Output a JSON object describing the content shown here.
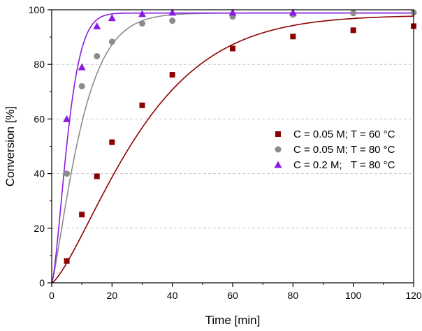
{
  "chart_data": {
    "type": "scatter",
    "title": "",
    "xlabel": "Time [min]",
    "ylabel": "Conversion [%]",
    "xlim": [
      0,
      120
    ],
    "ylim": [
      0,
      100
    ],
    "xticks": [
      0,
      20,
      40,
      60,
      80,
      100,
      120
    ],
    "yticks": [
      0,
      20,
      40,
      60,
      80,
      100
    ],
    "grid": "horizontal dashed",
    "legend_position": "center-right",
    "series": [
      {
        "name": "C = 0.05 M; T = 60 °C",
        "marker": "square",
        "color": "#8b0000",
        "x": [
          5,
          10,
          15,
          20,
          30,
          40,
          60,
          80,
          100,
          120
        ],
        "y": [
          8,
          25,
          39,
          51.5,
          65,
          76.2,
          85.8,
          90.2,
          92.5,
          94
        ],
        "fit": {
          "kind": "sigmoid",
          "ymax": 98,
          "k": 0.03,
          "n": 1.35
        }
      },
      {
        "name": "C = 0.05 M; T = 80 °C",
        "marker": "circle",
        "color": "#8c8c8c",
        "x": [
          5,
          10,
          15,
          20,
          30,
          40,
          60,
          80,
          100,
          120
        ],
        "y": [
          40,
          72,
          83,
          88.3,
          95,
          96,
          97.5,
          98.2,
          98.8,
          99
        ],
        "fit": {
          "kind": "sigmoid",
          "ymax": 98.8,
          "k": 0.092,
          "n": 1.25
        }
      },
      {
        "name": "C = 0.2 M;   T = 80 °C",
        "marker": "triangle",
        "color": "#8a1be0",
        "x": [
          5,
          10,
          15,
          20,
          30,
          40,
          60,
          80
        ],
        "y": [
          60,
          79,
          94,
          97,
          98.5,
          99,
          99,
          99
        ],
        "fit": {
          "kind": "sigmoid",
          "ymax": 98.8,
          "k": 0.16,
          "n": 1.5
        }
      }
    ]
  }
}
